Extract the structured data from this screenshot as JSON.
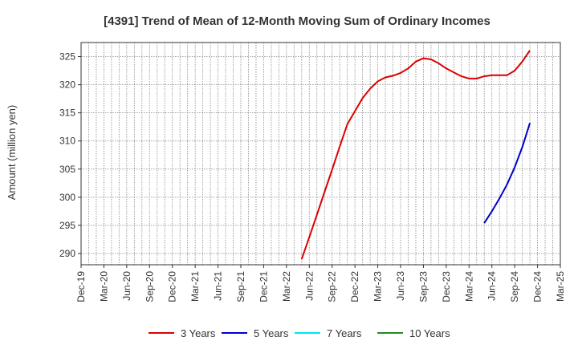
{
  "chart_data": {
    "type": "line",
    "title": "[4391]  Trend of Mean of 12-Month Moving Sum of Ordinary Incomes",
    "ylabel": "Amount (million yen)",
    "xlabel": "",
    "ylim": [
      288,
      327.5
    ],
    "yticks": [
      290,
      295,
      300,
      305,
      310,
      315,
      320,
      325
    ],
    "x_start": "Dec-19",
    "x_end": "Mar-25",
    "x_tick_labels": [
      "Dec-19",
      "Mar-20",
      "Jun-20",
      "Sep-20",
      "Dec-20",
      "Mar-21",
      "Jun-21",
      "Sep-21",
      "Dec-21",
      "Mar-22",
      "Jun-22",
      "Sep-22",
      "Dec-22",
      "Mar-23",
      "Jun-23",
      "Sep-23",
      "Dec-23",
      "Mar-24",
      "Jun-24",
      "Sep-24",
      "Dec-24",
      "Mar-25"
    ],
    "grid": true,
    "legend_position": "bottom",
    "series": [
      {
        "name": "3 Years",
        "color": "#dd0000",
        "start": "May-22",
        "values": [
          289.0,
          292.9,
          296.9,
          300.9,
          304.9,
          309.0,
          313.0,
          315.3,
          317.6,
          319.3,
          320.6,
          321.3,
          321.6,
          322.1,
          322.9,
          324.1,
          324.7,
          324.5,
          323.8,
          322.9,
          322.2,
          321.5,
          321.1,
          321.1,
          321.5,
          321.7,
          321.7,
          321.7,
          322.5,
          324.1,
          326.1
        ]
      },
      {
        "name": "5 Years",
        "color": "#0000cc",
        "start": "May-24",
        "values": [
          295.4,
          297.5,
          299.8,
          302.3,
          305.3,
          308.9,
          313.2
        ]
      },
      {
        "name": "7 Years",
        "color": "#00e5ee",
        "start": null,
        "values": []
      },
      {
        "name": "10 Years",
        "color": "#228b22",
        "start": null,
        "values": []
      }
    ]
  }
}
